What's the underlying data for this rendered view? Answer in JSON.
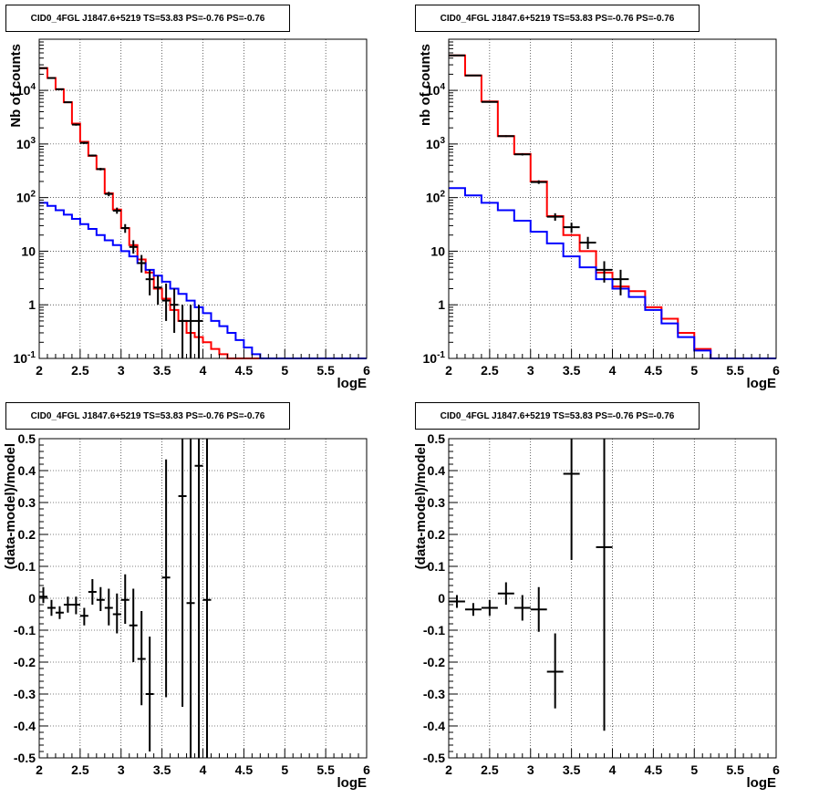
{
  "chart_data": [
    {
      "type": "step-histogram",
      "title": "CID0_4FGL J1847.6+5219 TS=53.83 PS=-0.76 PS=-0.76",
      "xlabel": "logE",
      "ylabel": "Nb of counts",
      "yscale": "log",
      "xlim": [
        2,
        6
      ],
      "ylim": [
        0.1,
        90000
      ],
      "x_ticks": [
        "2",
        "2.5",
        "3",
        "3.5",
        "4",
        "4.5",
        "5",
        "5.5",
        "6"
      ],
      "y_ticks": [
        "10^{-1}",
        "1",
        "10",
        "10^{2}",
        "10^{3}",
        "10^{4}"
      ],
      "grid": true,
      "bin_edges": [
        2.0,
        2.1,
        2.2,
        2.3,
        2.4,
        2.5,
        2.6,
        2.7,
        2.8,
        2.9,
        3.0,
        3.1,
        3.2,
        3.3,
        3.4,
        3.5,
        3.6,
        3.7,
        3.8,
        3.9,
        4.0,
        4.1,
        4.2,
        4.3,
        4.4,
        4.5,
        4.6,
        4.7,
        4.8,
        4.9,
        5.0,
        5.1,
        5.2,
        5.3,
        5.4,
        5.5,
        5.6,
        5.7,
        5.8,
        5.9,
        6.0
      ],
      "series": [
        {
          "color": "#ff0000",
          "values": [
            26000,
            17000,
            10500,
            6000,
            2400,
            1100,
            600,
            340,
            120,
            60,
            27,
            13,
            7,
            4,
            2.0,
            1.3,
            0.8,
            0.5,
            0.3,
            0.25,
            0.2,
            0.15,
            0.12,
            0.1,
            0.1,
            0.1,
            0.1,
            0.1,
            0.1,
            0.1,
            0.1,
            0.1,
            0.1,
            0.1,
            0.1,
            0.1,
            0.1,
            0.1,
            0.1,
            0.1
          ]
        },
        {
          "color": "#0000ff",
          "values": [
            80,
            70,
            58,
            48,
            40,
            32,
            26,
            20,
            16,
            13,
            10,
            8,
            6,
            4.5,
            3.5,
            2.7,
            2.0,
            1.6,
            1.2,
            0.9,
            0.7,
            0.5,
            0.4,
            0.3,
            0.22,
            0.16,
            0.12,
            0.1,
            0.1,
            0.1,
            0.1,
            0.1,
            0.1,
            0.1,
            0.1,
            0.1,
            0.1,
            0.1,
            0.1,
            0.1
          ]
        }
      ],
      "points": [
        {
          "x": 2.05,
          "y": 26000,
          "ylo": 25700,
          "yhi": 26300
        },
        {
          "x": 2.15,
          "y": 17000,
          "ylo": 16750,
          "yhi": 17250
        },
        {
          "x": 2.25,
          "y": 10500,
          "ylo": 10300,
          "yhi": 10700
        },
        {
          "x": 2.35,
          "y": 6000,
          "ylo": 5850,
          "yhi": 6150
        },
        {
          "x": 2.45,
          "y": 2300,
          "ylo": 2200,
          "yhi": 2400
        },
        {
          "x": 2.55,
          "y": 1050,
          "ylo": 1000,
          "yhi": 1100
        },
        {
          "x": 2.65,
          "y": 610,
          "ylo": 585,
          "yhi": 635
        },
        {
          "x": 2.75,
          "y": 340,
          "ylo": 322,
          "yhi": 358
        },
        {
          "x": 2.85,
          "y": 117,
          "ylo": 106,
          "yhi": 128
        },
        {
          "x": 2.95,
          "y": 57,
          "ylo": 50,
          "yhi": 65
        },
        {
          "x": 3.05,
          "y": 27,
          "ylo": 22,
          "yhi": 32
        },
        {
          "x": 3.15,
          "y": 12,
          "ylo": 9,
          "yhi": 16
        },
        {
          "x": 3.25,
          "y": 6,
          "ylo": 4,
          "yhi": 8.5
        },
        {
          "x": 3.35,
          "y": 3,
          "ylo": 1.5,
          "yhi": 4.5
        },
        {
          "x": 3.45,
          "y": 2.1,
          "ylo": 1.0,
          "yhi": 3.5
        },
        {
          "x": 3.55,
          "y": 1.2,
          "ylo": 0.5,
          "yhi": 2.5
        },
        {
          "x": 3.65,
          "y": 1.0,
          "ylo": 0.3,
          "yhi": 2.0
        },
        {
          "x": 3.75,
          "y": 0.5,
          "ylo": 0.1,
          "yhi": 1.0
        },
        {
          "x": 3.85,
          "y": 0.5,
          "ylo": 0.1,
          "yhi": 1.0
        },
        {
          "x": 3.95,
          "y": 0.5,
          "ylo": 0.1,
          "yhi": 1.0
        }
      ]
    },
    {
      "type": "step-histogram",
      "title": "CID0_4FGL J1847.6+5219 TS=53.83 PS=-0.76 PS=-0.76",
      "xlabel": "logE",
      "ylabel": "nb of counts",
      "yscale": "log",
      "xlim": [
        2,
        6
      ],
      "ylim": [
        0.1,
        90000
      ],
      "x_ticks": [
        "2",
        "2.5",
        "3",
        "3.5",
        "4",
        "4.5",
        "5",
        "5.5",
        "6"
      ],
      "y_ticks": [
        "10^{-1}",
        "1",
        "10",
        "10^{2}",
        "10^{3}",
        "10^{4}"
      ],
      "grid": true,
      "bin_edges": [
        2.0,
        2.2,
        2.4,
        2.6,
        2.8,
        3.0,
        3.2,
        3.4,
        3.6,
        3.8,
        4.0,
        4.2,
        4.4,
        4.6,
        4.8,
        5.0,
        5.2,
        5.4,
        5.6,
        5.8,
        6.0
      ],
      "series": [
        {
          "color": "#ff0000",
          "values": [
            45000,
            19000,
            6200,
            1400,
            650,
            200,
            45,
            20,
            10,
            4,
            2.2,
            1.8,
            0.9,
            0.55,
            0.3,
            0.15,
            0.1,
            0.1,
            0.1,
            0.1
          ]
        },
        {
          "color": "#0000ff",
          "values": [
            150,
            110,
            80,
            58,
            37,
            23,
            14,
            8,
            5,
            3,
            2.0,
            1.4,
            0.8,
            0.45,
            0.25,
            0.14,
            0.1,
            0.1,
            0.1,
            0.1
          ]
        }
      ],
      "points": [
        {
          "x": 2.1,
          "y": 45000,
          "ylo": 44700,
          "yhi": 45300
        },
        {
          "x": 2.3,
          "y": 19000,
          "ylo": 18800,
          "yhi": 19200
        },
        {
          "x": 2.5,
          "y": 6100,
          "ylo": 5950,
          "yhi": 6250
        },
        {
          "x": 2.7,
          "y": 1400,
          "ylo": 1350,
          "yhi": 1450
        },
        {
          "x": 2.9,
          "y": 640,
          "ylo": 610,
          "yhi": 670
        },
        {
          "x": 3.1,
          "y": 195,
          "ylo": 180,
          "yhi": 210
        },
        {
          "x": 3.3,
          "y": 44,
          "ylo": 37,
          "yhi": 51
        },
        {
          "x": 3.5,
          "y": 28,
          "ylo": 22,
          "yhi": 34
        },
        {
          "x": 3.7,
          "y": 14.5,
          "ylo": 11,
          "yhi": 18.5
        },
        {
          "x": 3.9,
          "y": 4.5,
          "ylo": 2.6,
          "yhi": 6.5
        },
        {
          "x": 4.1,
          "y": 3.0,
          "ylo": 1.5,
          "yhi": 4.5
        }
      ]
    },
    {
      "type": "scatter",
      "title": "CID0_4FGL J1847.6+5219 TS=53.83 PS=-0.76 PS=-0.76",
      "xlabel": "logE",
      "ylabel": "(data-model)/model",
      "xlim": [
        2,
        6
      ],
      "ylim": [
        -0.5,
        0.5
      ],
      "x_ticks": [
        "2",
        "2.5",
        "3",
        "3.5",
        "4",
        "4.5",
        "5",
        "5.5",
        "6"
      ],
      "y_ticks": [
        "-0.5",
        "-0.4",
        "-0.3",
        "-0.2",
        "-0.1",
        "0",
        "0.1",
        "0.2",
        "0.3",
        "0.4",
        "0.5"
      ],
      "grid": true,
      "points": [
        {
          "x": 2.05,
          "y": 0.005,
          "ylo": -0.015,
          "yhi": 0.035,
          "xerr": 0.05
        },
        {
          "x": 2.15,
          "y": -0.03,
          "ylo": -0.055,
          "yhi": -0.005,
          "xerr": 0.05
        },
        {
          "x": 2.25,
          "y": -0.045,
          "ylo": -0.065,
          "yhi": -0.025,
          "xerr": 0.05
        },
        {
          "x": 2.35,
          "y": -0.02,
          "ylo": -0.045,
          "yhi": 0.005,
          "xerr": 0.05
        },
        {
          "x": 2.45,
          "y": -0.02,
          "ylo": -0.05,
          "yhi": 0.005,
          "xerr": 0.05
        },
        {
          "x": 2.55,
          "y": -0.055,
          "ylo": -0.085,
          "yhi": -0.03,
          "xerr": 0.05
        },
        {
          "x": 2.65,
          "y": 0.02,
          "ylo": -0.02,
          "yhi": 0.06,
          "xerr": 0.05
        },
        {
          "x": 2.75,
          "y": -0.005,
          "ylo": -0.04,
          "yhi": 0.035,
          "xerr": 0.05
        },
        {
          "x": 2.85,
          "y": -0.03,
          "ylo": -0.085,
          "yhi": 0.03,
          "xerr": 0.05
        },
        {
          "x": 2.95,
          "y": -0.05,
          "ylo": -0.11,
          "yhi": 0.015,
          "xerr": 0.05
        },
        {
          "x": 3.05,
          "y": -0.005,
          "ylo": -0.08,
          "yhi": 0.075,
          "xerr": 0.05
        },
        {
          "x": 3.15,
          "y": -0.085,
          "ylo": -0.2,
          "yhi": 0.03,
          "xerr": 0.05
        },
        {
          "x": 3.25,
          "y": -0.19,
          "ylo": -0.335,
          "yhi": -0.04,
          "xerr": 0.05
        },
        {
          "x": 3.35,
          "y": -0.3,
          "ylo": -0.48,
          "yhi": -0.12,
          "xerr": 0.05
        },
        {
          "x": 3.55,
          "y": 0.065,
          "ylo": -0.31,
          "yhi": 0.435,
          "xerr": 0.05
        },
        {
          "x": 3.75,
          "y": 0.32,
          "ylo": -0.34,
          "yhi": 0.5,
          "xerr": 0.05
        },
        {
          "x": 3.85,
          "y": -0.015,
          "ylo": -0.5,
          "yhi": 0.5,
          "xerr": 0.05
        },
        {
          "x": 3.95,
          "y": 0.415,
          "ylo": -0.5,
          "yhi": 0.5,
          "xerr": 0.05
        },
        {
          "x": 4.05,
          "y": -0.005,
          "ylo": -0.5,
          "yhi": 0.5,
          "xerr": 0.05
        }
      ]
    },
    {
      "type": "scatter",
      "title": "CID0_4FGL J1847.6+5219 TS=53.83 PS=-0.76 PS=-0.76",
      "xlabel": "logE",
      "ylabel": "(data-model)/model",
      "xlim": [
        2,
        6
      ],
      "ylim": [
        -0.5,
        0.5
      ],
      "x_ticks": [
        "2",
        "2.5",
        "3",
        "3.5",
        "4",
        "4.5",
        "5",
        "5.5",
        "6"
      ],
      "y_ticks": [
        "-0.5",
        "-0.4",
        "-0.3",
        "-0.2",
        "-0.1",
        "0",
        "0.1",
        "0.2",
        "0.3",
        "0.4",
        "0.5"
      ],
      "grid": true,
      "points": [
        {
          "x": 2.1,
          "y": -0.01,
          "ylo": -0.03,
          "yhi": 0.01,
          "xerr": 0.1
        },
        {
          "x": 2.3,
          "y": -0.035,
          "ylo": -0.055,
          "yhi": -0.015,
          "xerr": 0.1
        },
        {
          "x": 2.5,
          "y": -0.03,
          "ylo": -0.055,
          "yhi": -0.005,
          "xerr": 0.1
        },
        {
          "x": 2.7,
          "y": 0.015,
          "ylo": -0.02,
          "yhi": 0.05,
          "xerr": 0.1
        },
        {
          "x": 2.9,
          "y": -0.03,
          "ylo": -0.07,
          "yhi": 0.01,
          "xerr": 0.1
        },
        {
          "x": 3.1,
          "y": -0.035,
          "ylo": -0.105,
          "yhi": 0.035,
          "xerr": 0.1
        },
        {
          "x": 3.3,
          "y": -0.23,
          "ylo": -0.345,
          "yhi": -0.11,
          "xerr": 0.1
        },
        {
          "x": 3.5,
          "y": 0.39,
          "ylo": 0.12,
          "yhi": 0.5,
          "xerr": 0.1
        },
        {
          "x": 3.9,
          "y": 0.16,
          "ylo": -0.415,
          "yhi": 0.5,
          "xerr": 0.1
        }
      ]
    }
  ]
}
